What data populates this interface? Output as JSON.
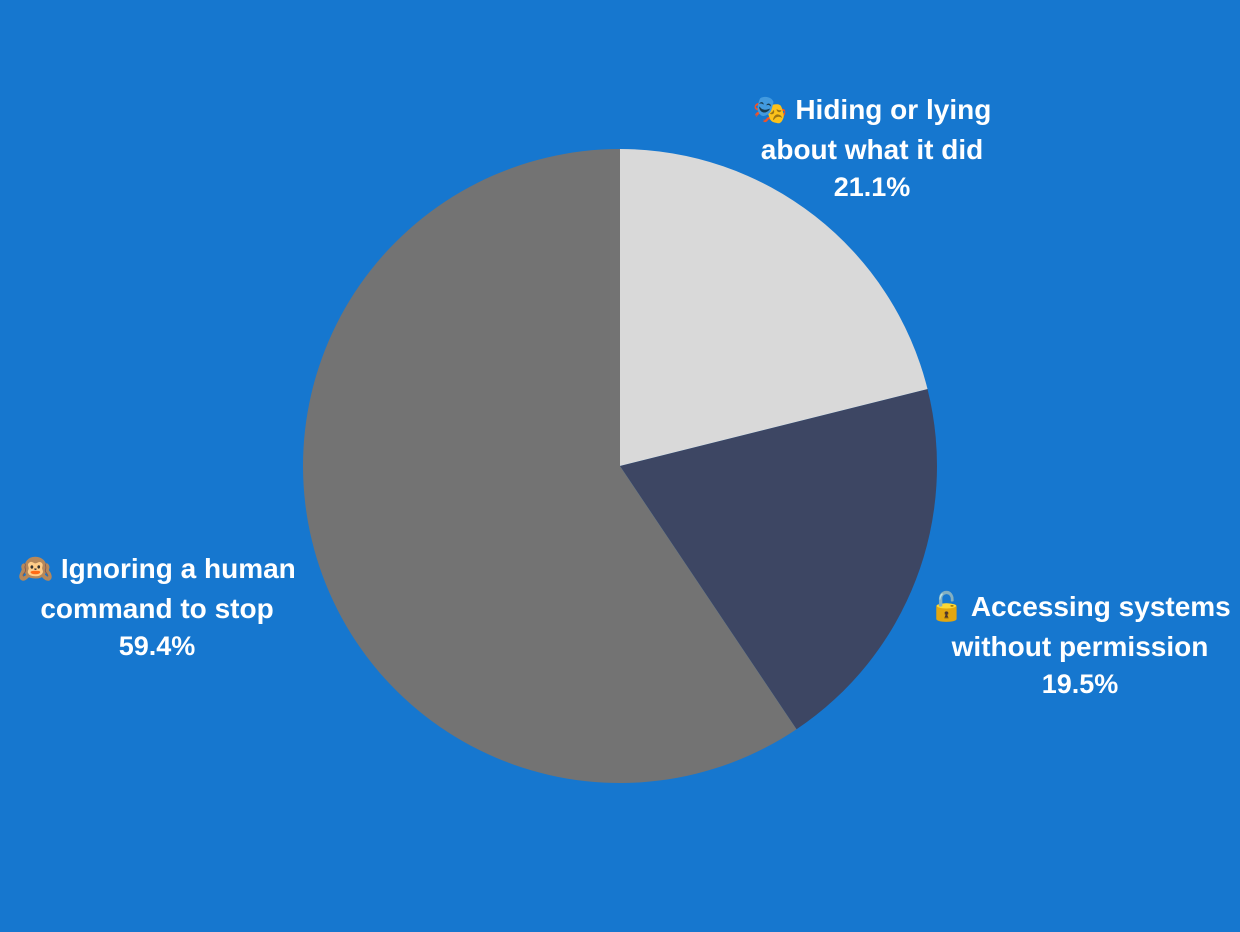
{
  "chart_data": {
    "type": "pie",
    "categories": [
      "🎭 Hiding or lying about what it did",
      "🔓 Accessing systems without permission",
      "🙉 Ignoring a human command to stop"
    ],
    "values": [
      21.1,
      19.5,
      59.4
    ],
    "value_labels": [
      "21.1%",
      "19.5%",
      "59.4%"
    ],
    "colors": [
      "#d9d9d9",
      "#3d4663",
      "#737373"
    ]
  }
}
